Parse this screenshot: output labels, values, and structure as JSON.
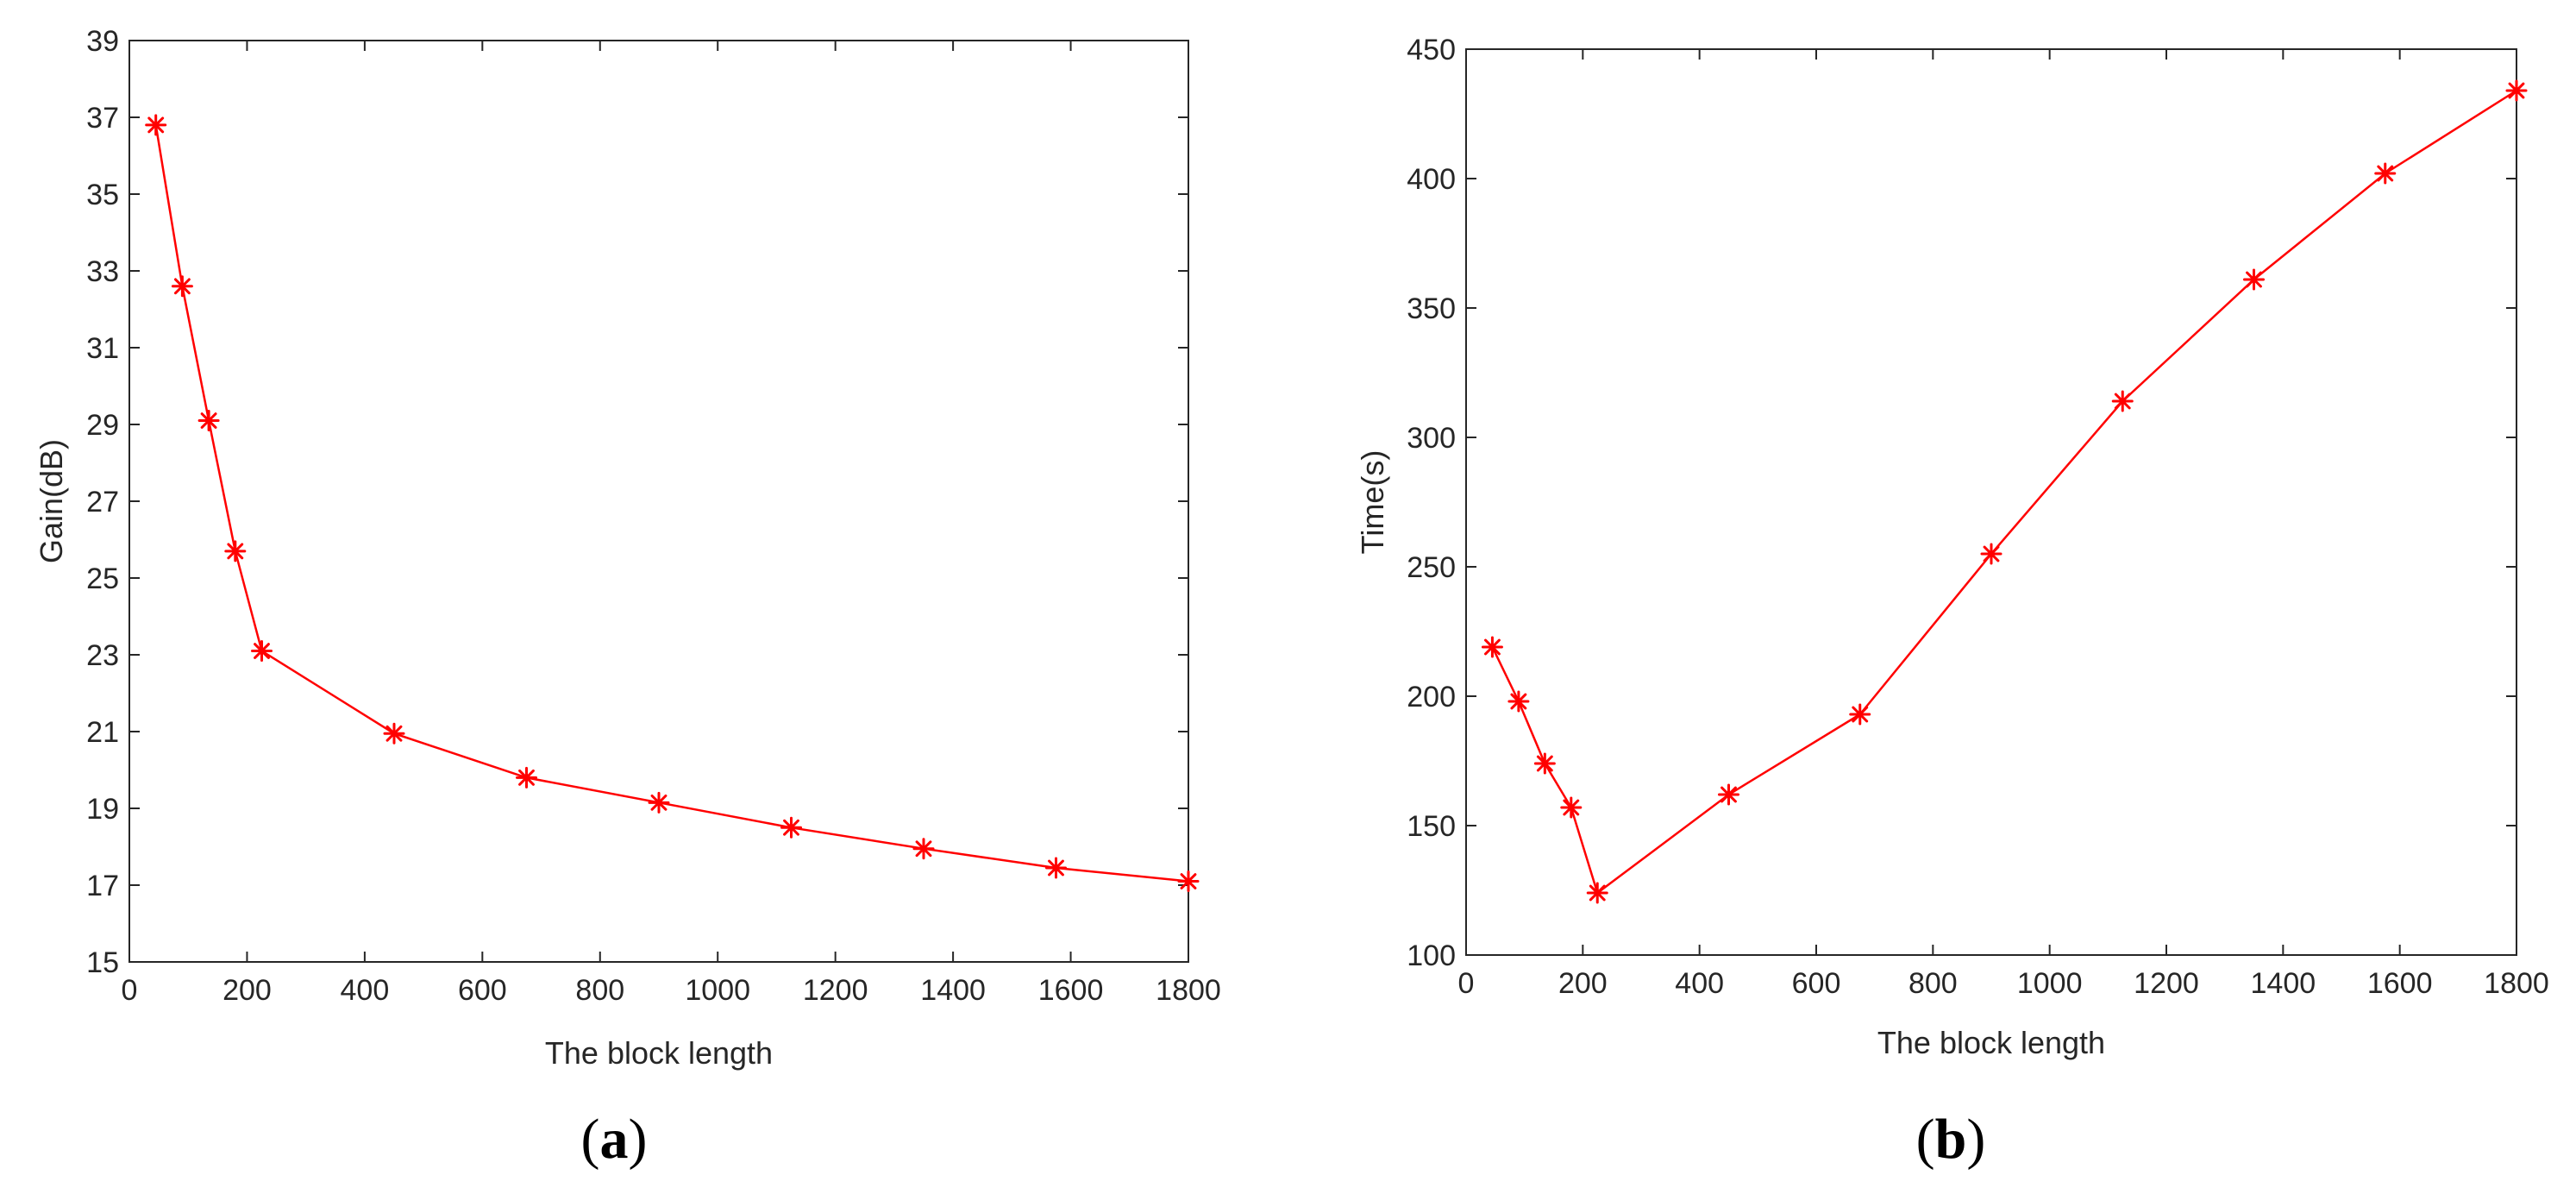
{
  "colors": {
    "series": "#ff0000",
    "axis": "#262626",
    "background": "#ffffff"
  },
  "chart_data": [
    {
      "type": "line",
      "panel_label": "a",
      "xlabel": "The block length",
      "ylabel": "Gain(dB)",
      "xlim": [
        0,
        1800
      ],
      "ylim": [
        15,
        39
      ],
      "xticks": [
        0,
        200,
        400,
        600,
        800,
        1000,
        1200,
        1400,
        1600,
        1800
      ],
      "yticks": [
        15,
        17,
        19,
        21,
        23,
        25,
        27,
        29,
        31,
        33,
        35,
        37,
        39
      ],
      "grid": false,
      "marker": "asterisk",
      "series": [
        {
          "x": [
            45,
            90,
            135,
            180,
            225,
            450,
            675,
            900,
            1125,
            1350,
            1575,
            1800
          ],
          "y": [
            36.8,
            32.6,
            29.1,
            25.7,
            23.1,
            20.95,
            19.8,
            19.15,
            18.5,
            17.95,
            17.45,
            17.1
          ]
        }
      ]
    },
    {
      "type": "line",
      "panel_label": "b",
      "xlabel": "The block length",
      "ylabel": "Time(s)",
      "xlim": [
        0,
        1800
      ],
      "ylim": [
        100,
        450
      ],
      "xticks": [
        0,
        200,
        400,
        600,
        800,
        1000,
        1200,
        1400,
        1600,
        1800
      ],
      "yticks": [
        100,
        150,
        200,
        250,
        300,
        350,
        400,
        450
      ],
      "grid": false,
      "marker": "asterisk",
      "series": [
        {
          "x": [
            45,
            90,
            135,
            180,
            225,
            450,
            675,
            900,
            1125,
            1350,
            1575,
            1800
          ],
          "y": [
            219,
            198,
            174,
            157,
            124,
            162,
            193,
            255,
            314,
            361,
            402,
            434
          ]
        }
      ]
    }
  ]
}
